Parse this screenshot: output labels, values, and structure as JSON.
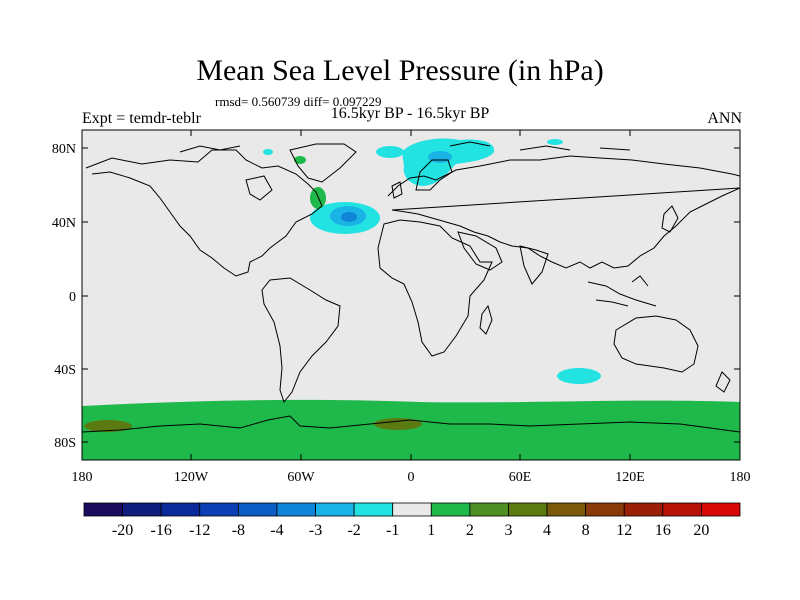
{
  "map": {
    "title": "Mean Sea Level Pressure (in hPa)",
    "stats": "rmsd= 0.560739 diff= 0.097229",
    "experiment": "Expt = temdr-teblr",
    "period": "16.5kyr BP - 16.5kyr BP",
    "season": "ANN",
    "lat_labels": [
      "80N",
      "40N",
      "0",
      "40S",
      "80S"
    ],
    "lon_labels": [
      "180",
      "120W",
      "60W",
      "0",
      "60E",
      "120E",
      "180"
    ]
  },
  "colorbar": {
    "labels": [
      "-20",
      "-16",
      "-12",
      "-8",
      "-4",
      "-3",
      "-2",
      "-1",
      "1",
      "2",
      "3",
      "4",
      "8",
      "12",
      "16",
      "20"
    ],
    "colors": [
      "#1b0a5c",
      "#0f1e7d",
      "#0a2a9c",
      "#0c3fb5",
      "#0a5ec4",
      "#0f84d8",
      "#19b3e6",
      "#22e2e2",
      "#e9e9e9",
      "#1fb84a",
      "#4f8f25",
      "#5c7a12",
      "#7a5a0a",
      "#8a3a08",
      "#9b1f08",
      "#b81208",
      "#d80808"
    ]
  }
}
